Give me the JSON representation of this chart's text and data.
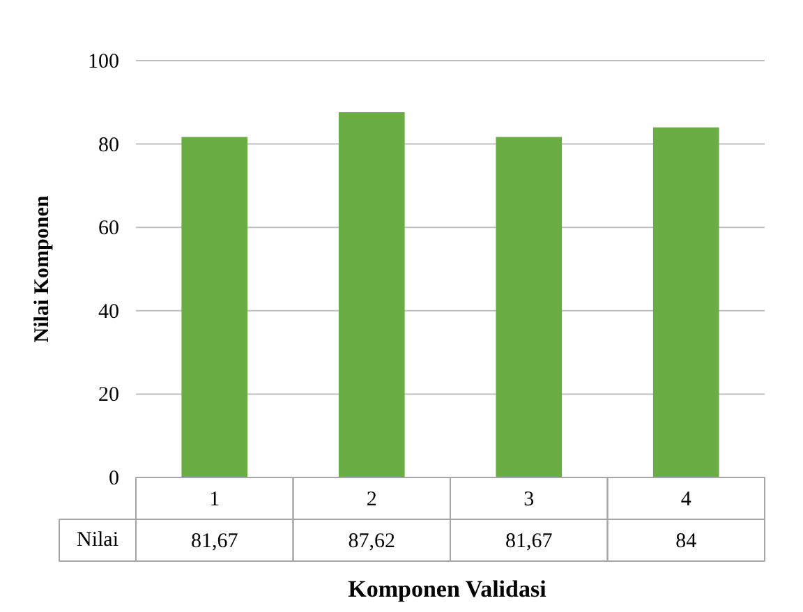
{
  "chart_data": {
    "type": "bar",
    "xlabel": "Komponen  Validasi",
    "ylabel": "Nilai Komponen",
    "categories": [
      "1",
      "2",
      "3",
      "4"
    ],
    "series": [
      {
        "name": "Nilai",
        "color": "#6aad45",
        "values": [
          81.67,
          87.62,
          81.67,
          84
        ],
        "value_labels": [
          "81,67",
          "87,62",
          "81,67",
          "84"
        ]
      }
    ],
    "ylim": [
      0,
      100
    ],
    "yticks": [
      0,
      20,
      40,
      60,
      80,
      100
    ],
    "grid": "y"
  }
}
